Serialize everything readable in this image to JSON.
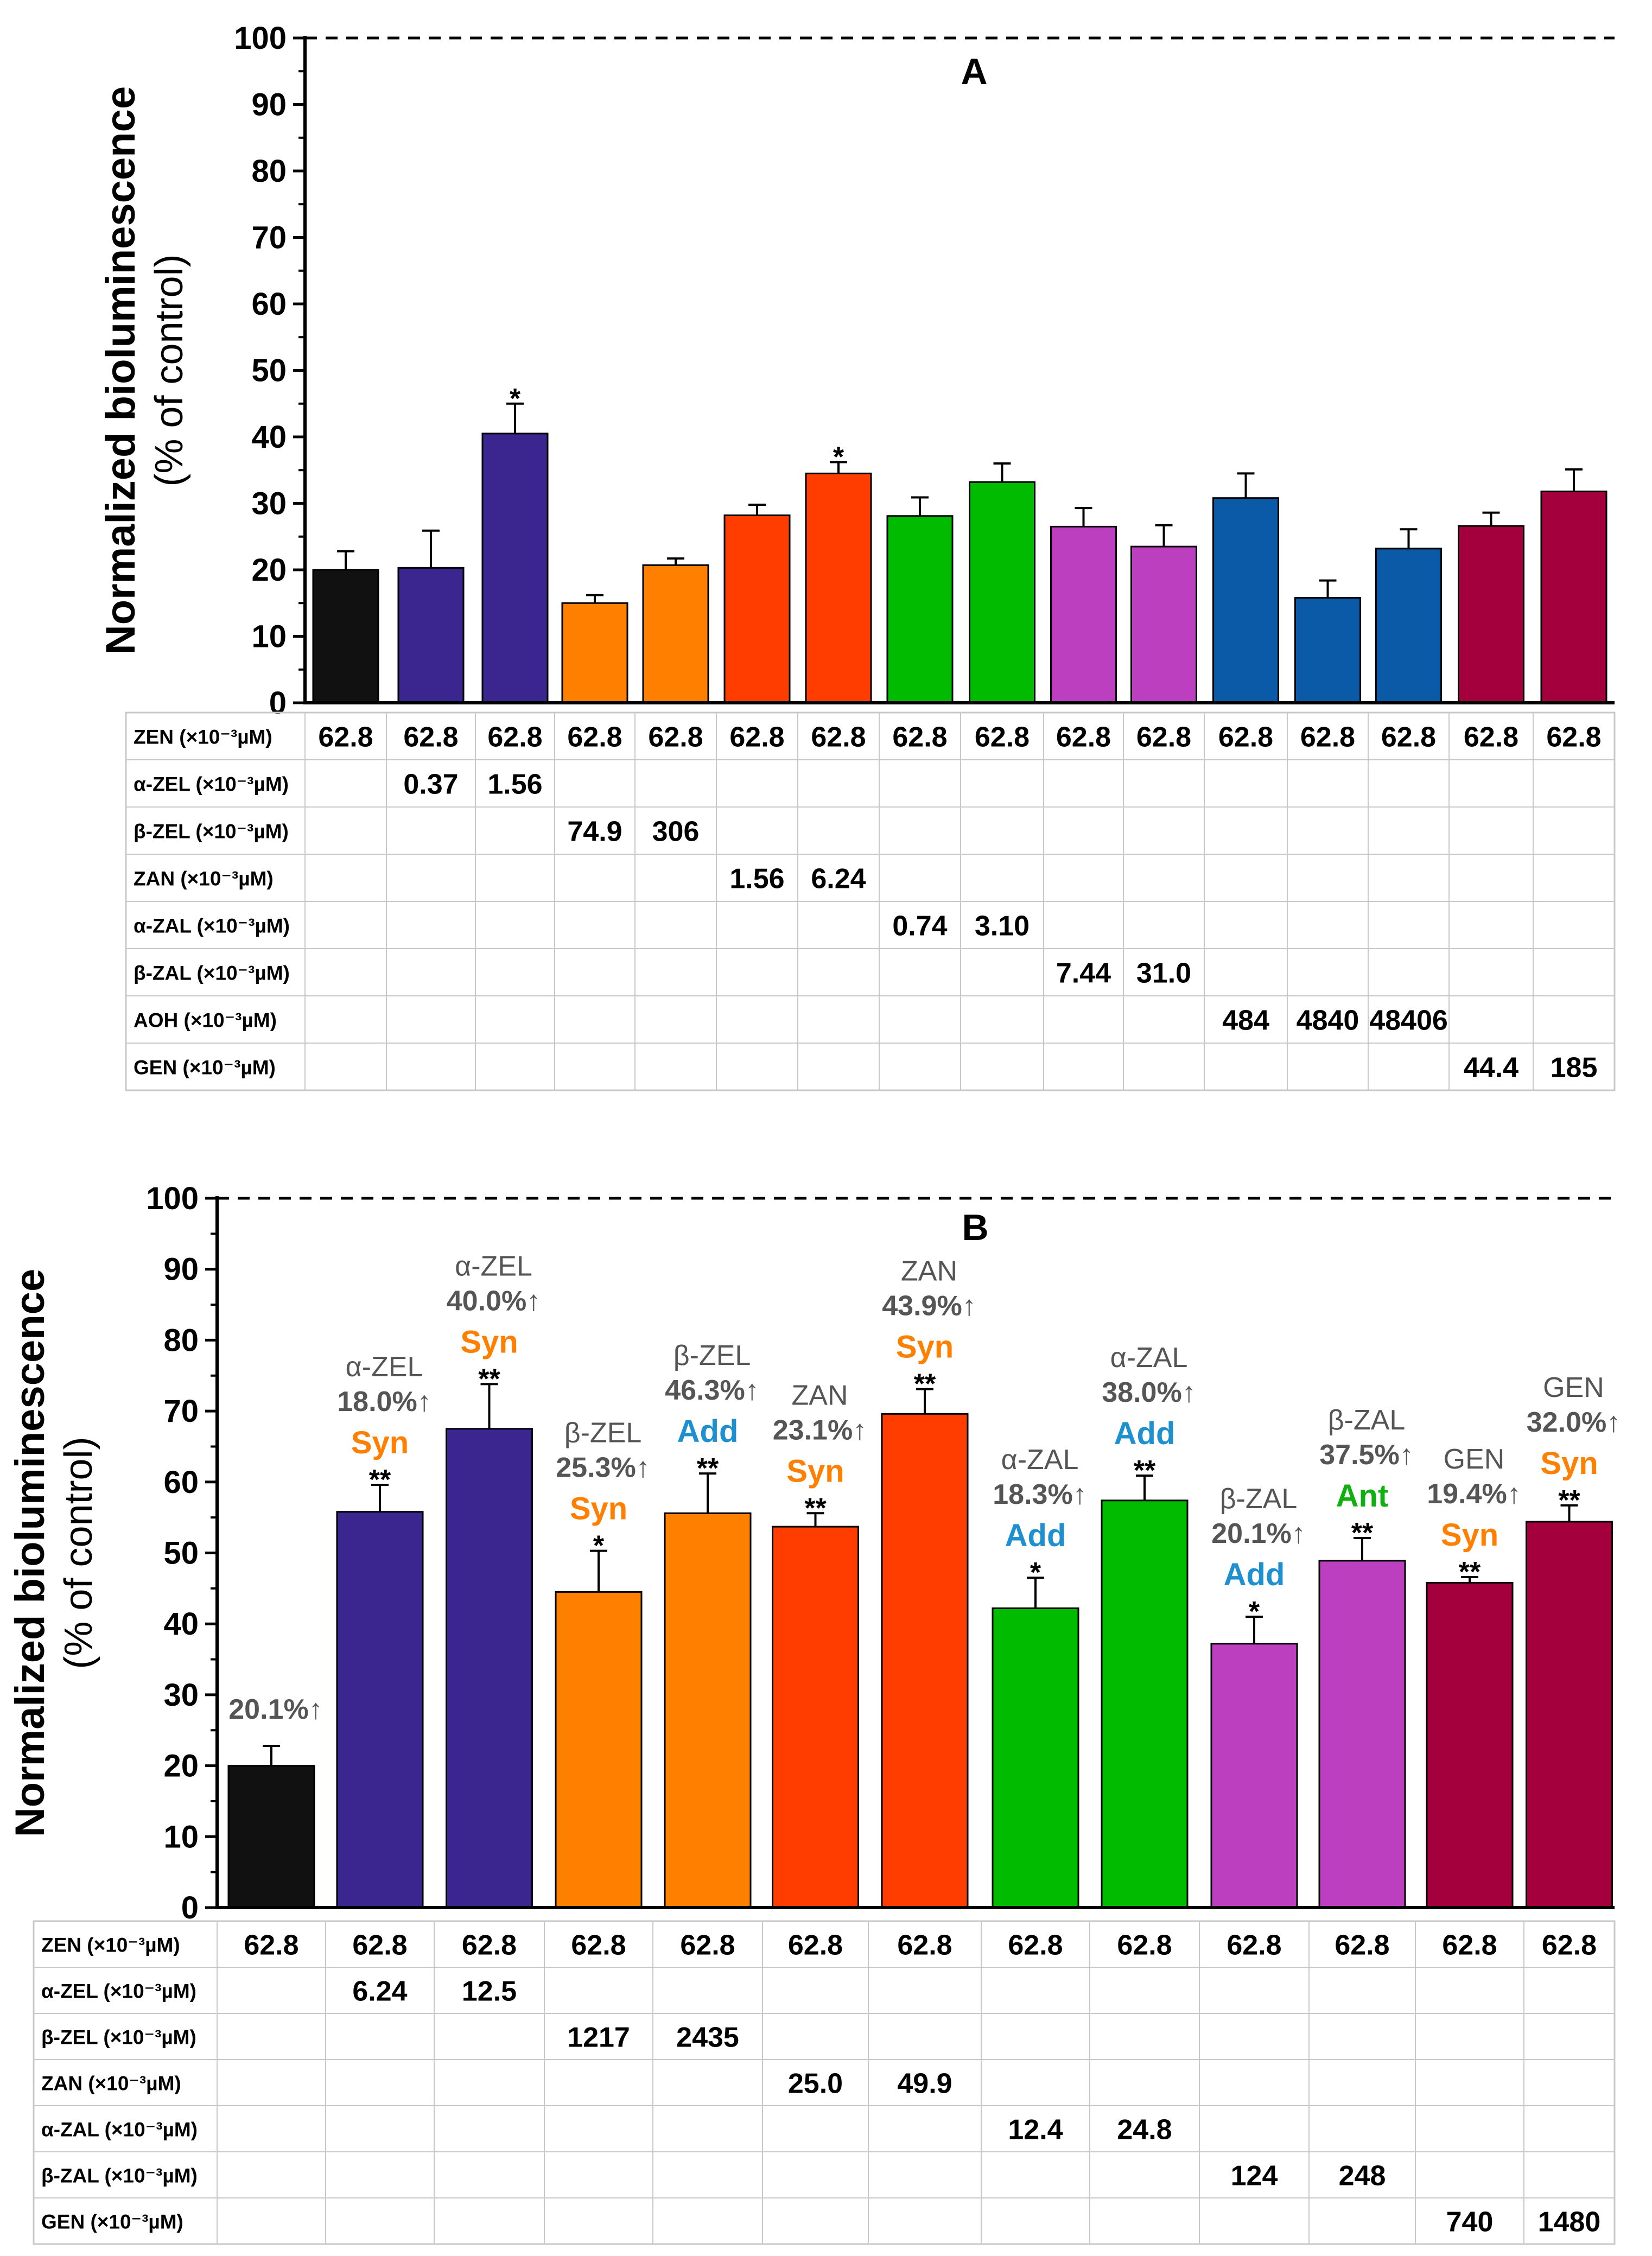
{
  "colors": {
    "black": "#111111",
    "purple": "#3b2690",
    "orange": "#ff7f00",
    "redorange": "#ff3d00",
    "green": "#00bb00",
    "magenta": "#bb3fbf",
    "blue": "#0a5aa8",
    "maroon": "#a4003e",
    "syn": "#ff7f00",
    "add": "#1e90d0",
    "ant": "#10b010",
    "note": "#555555"
  },
  "chart_data": [
    {
      "panel": "A",
      "type": "bar",
      "title": "A",
      "ylabel_line1": "Normalized bioluminescence",
      "ylabel_line2": "(% of control)",
      "ylim": [
        0,
        100
      ],
      "yticks": [
        "0",
        "10",
        "20",
        "30",
        "40",
        "50",
        "60",
        "70",
        "80",
        "90",
        "100"
      ],
      "reference_line": 100,
      "values": [
        20,
        20.3,
        40.5,
        15,
        20.7,
        28.2,
        34.5,
        28.1,
        33.2,
        26.5,
        23.5,
        30.8,
        15.8,
        23.2,
        26.6,
        31.8
      ],
      "errors": [
        2.8,
        5.6,
        4.5,
        1.2,
        1.0,
        1.6,
        1.7,
        2.8,
        2.8,
        2.8,
        3.2,
        3.7,
        2.6,
        2.9,
        2.0,
        3.3
      ],
      "colors": [
        "black",
        "purple",
        "purple",
        "orange",
        "orange",
        "redorange",
        "redorange",
        "green",
        "green",
        "magenta",
        "magenta",
        "blue",
        "blue",
        "blue",
        "maroon",
        "maroon"
      ],
      "significance": [
        "",
        "",
        "*",
        "",
        "",
        "",
        "*",
        "",
        "",
        "",
        "",
        "",
        "",
        "",
        "",
        ""
      ],
      "table": {
        "rows": [
          {
            "label": "ZEN (×10⁻³µM)",
            "cells": [
              "62.8",
              "62.8",
              "62.8",
              "62.8",
              "62.8",
              "62.8",
              "62.8",
              "62.8",
              "62.8",
              "62.8",
              "62.8",
              "62.8",
              "62.8",
              "62.8",
              "62.8",
              "62.8"
            ]
          },
          {
            "label": "α-ZEL (×10⁻³µM)",
            "cells": [
              "",
              "0.37",
              "1.56",
              "",
              "",
              "",
              "",
              "",
              "",
              "",
              "",
              "",
              "",
              "",
              "",
              ""
            ]
          },
          {
            "label": "β-ZEL (×10⁻³µM)",
            "cells": [
              "",
              "",
              "",
              "74.9",
              "306",
              "",
              "",
              "",
              "",
              "",
              "",
              "",
              "",
              "",
              "",
              ""
            ]
          },
          {
            "label": "ZAN (×10⁻³µM)",
            "cells": [
              "",
              "",
              "",
              "",
              "",
              "1.56",
              "6.24",
              "",
              "",
              "",
              "",
              "",
              "",
              "",
              "",
              ""
            ]
          },
          {
            "label": "α-ZAL (×10⁻³µM)",
            "cells": [
              "",
              "",
              "",
              "",
              "",
              "",
              "",
              "0.74",
              "3.10",
              "",
              "",
              "",
              "",
              "",
              "",
              ""
            ]
          },
          {
            "label": "β-ZAL (×10⁻³µM)",
            "cells": [
              "",
              "",
              "",
              "",
              "",
              "",
              "",
              "",
              "",
              "7.44",
              "31.0",
              "",
              "",
              "",
              "",
              ""
            ]
          },
          {
            "label": "AOH (×10⁻³µM)",
            "cells": [
              "",
              "",
              "",
              "",
              "",
              "",
              "",
              "",
              "",
              "",
              "",
              "484",
              "4840",
              "48406",
              "",
              ""
            ]
          },
          {
            "label": "GEN (×10⁻³µM)",
            "cells": [
              "",
              "",
              "",
              "",
              "",
              "",
              "",
              "",
              "",
              "",
              "",
              "",
              "",
              "",
              "44.4",
              "185"
            ]
          }
        ]
      }
    },
    {
      "panel": "B",
      "type": "bar",
      "title": "B",
      "ylabel_line1": "Normalized bioluminescence",
      "ylabel_line2": "(% of control)",
      "ylim": [
        0,
        100
      ],
      "yticks": [
        "0",
        "10",
        "20",
        "30",
        "40",
        "50",
        "60",
        "70",
        "80",
        "90",
        "100"
      ],
      "reference_line": 100,
      "values": [
        20,
        55.8,
        67.5,
        44.5,
        55.6,
        53.7,
        69.6,
        42.2,
        57.4,
        37.2,
        48.9,
        45.8,
        54.4
      ],
      "errors": [
        2.8,
        3.8,
        6.3,
        5.8,
        5.6,
        1.9,
        3.5,
        4.3,
        3.5,
        3.8,
        3.2,
        0.8,
        2.3
      ],
      "colors": [
        "black",
        "purple",
        "purple",
        "orange",
        "orange",
        "redorange",
        "redorange",
        "green",
        "green",
        "magenta",
        "magenta",
        "maroon",
        "maroon"
      ],
      "significance": [
        "",
        "**",
        "**",
        "*",
        "**",
        "**",
        "**",
        "*",
        "**",
        "*",
        "**",
        "**",
        "**"
      ],
      "interaction": [
        "",
        "Syn",
        "Syn",
        "Syn",
        "Add",
        "Syn",
        "Syn",
        "Add",
        "Add",
        "Add",
        "Ant",
        "Syn",
        "Syn"
      ],
      "annotations": [
        [
          "20.1%↑"
        ],
        [
          "α-ZEL",
          "18.0%↑"
        ],
        [
          "α-ZEL",
          "40.0%↑"
        ],
        [
          "β-ZEL",
          "25.3%↑"
        ],
        [
          "β-ZEL",
          "46.3%↑"
        ],
        [
          "ZAN",
          "23.1%↑"
        ],
        [
          "ZAN",
          "43.9%↑"
        ],
        [
          "α-ZAL",
          "18.3%↑"
        ],
        [
          "α-ZAL",
          "38.0%↑"
        ],
        [
          "β-ZAL",
          "20.1%↑"
        ],
        [
          "β-ZAL",
          "37.5%↑"
        ],
        [
          "GEN",
          "19.4%↑"
        ],
        [
          "GEN",
          "32.0%↑"
        ]
      ],
      "table": {
        "rows": [
          {
            "label": "ZEN (×10⁻³µM)",
            "cells": [
              "62.8",
              "62.8",
              "62.8",
              "62.8",
              "62.8",
              "62.8",
              "62.8",
              "62.8",
              "62.8",
              "62.8",
              "62.8",
              "62.8",
              "62.8"
            ]
          },
          {
            "label": "α-ZEL (×10⁻³µM)",
            "cells": [
              "",
              "6.24",
              "12.5",
              "",
              "",
              "",
              "",
              "",
              "",
              "",
              "",
              "",
              ""
            ]
          },
          {
            "label": "β-ZEL (×10⁻³µM)",
            "cells": [
              "",
              "",
              "",
              "1217",
              "2435",
              "",
              "",
              "",
              "",
              "",
              "",
              "",
              ""
            ]
          },
          {
            "label": "ZAN (×10⁻³µM)",
            "cells": [
              "",
              "",
              "",
              "",
              "",
              "25.0",
              "49.9",
              "",
              "",
              "",
              "",
              "",
              ""
            ]
          },
          {
            "label": "α-ZAL (×10⁻³µM)",
            "cells": [
              "",
              "",
              "",
              "",
              "",
              "",
              "",
              "12.4",
              "24.8",
              "",
              "",
              "",
              ""
            ]
          },
          {
            "label": "β-ZAL (×10⁻³µM)",
            "cells": [
              "",
              "",
              "",
              "",
              "",
              "",
              "",
              "",
              "",
              "124",
              "248",
              "",
              ""
            ]
          },
          {
            "label": "GEN (×10⁻³µM)",
            "cells": [
              "",
              "",
              "",
              "",
              "",
              "",
              "",
              "",
              "",
              "",
              "",
              "740",
              "1480"
            ]
          }
        ]
      }
    }
  ]
}
